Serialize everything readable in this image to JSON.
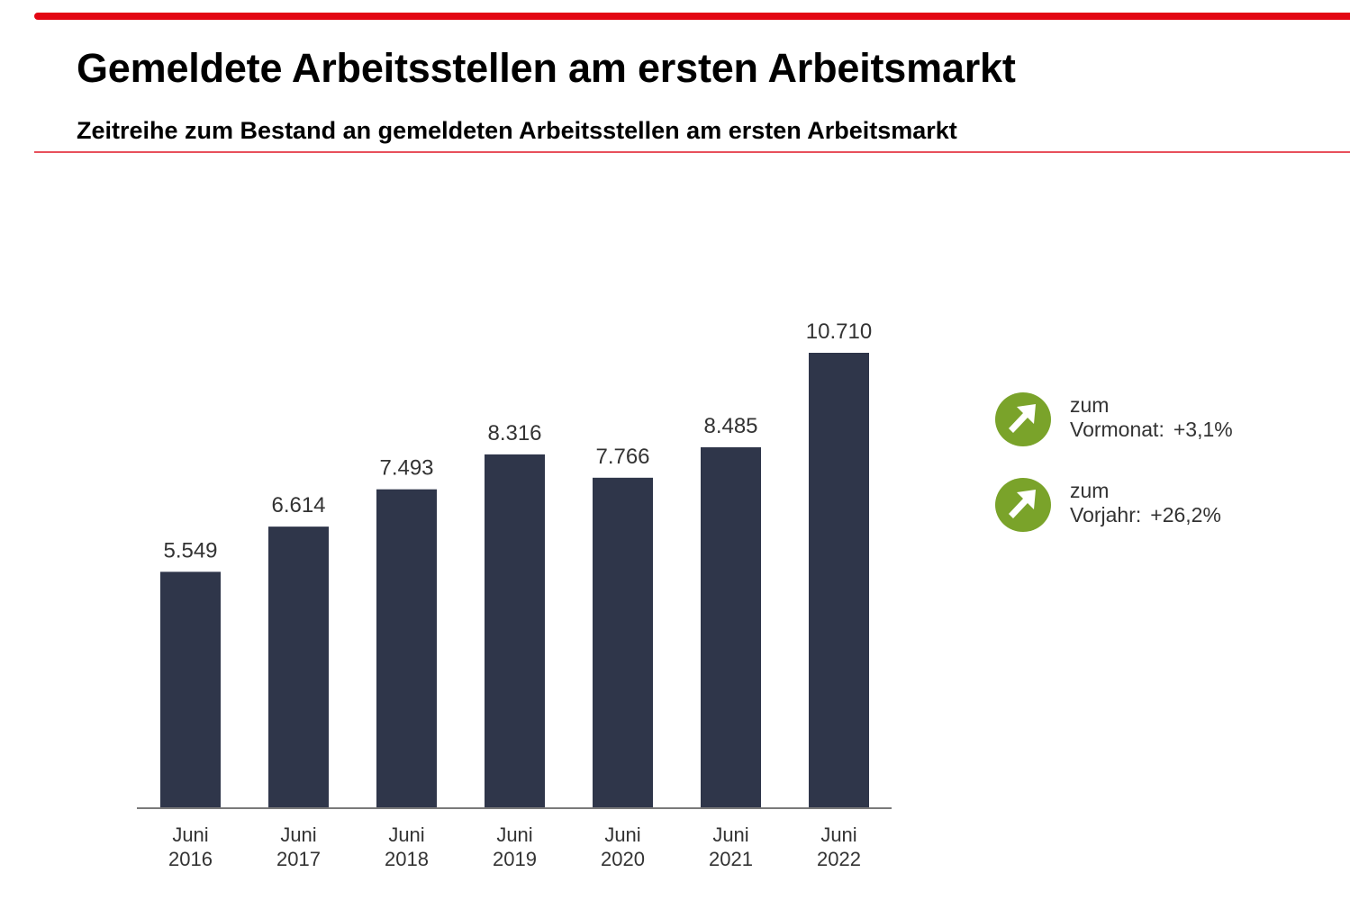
{
  "header": {
    "title": "Gemeldete Arbeitsstellen am ersten Arbeitsmarkt",
    "subtitle": "Zeitreihe zum Bestand an gemeldeten Arbeitsstellen am ersten Arbeitsmarkt"
  },
  "colors": {
    "accent_red": "#e30613",
    "bar": "#2f364a",
    "kpi_green": "#7aa32a"
  },
  "chart_data": {
    "type": "bar",
    "title": "Gemeldete Arbeitsstellen am ersten Arbeitsmarkt",
    "subtitle": "Zeitreihe zum Bestand an gemeldeten Arbeitsstellen am ersten Arbeitsmarkt",
    "xlabel": "",
    "ylabel": "",
    "categories": [
      {
        "line1": "Juni",
        "line2": "2016"
      },
      {
        "line1": "Juni",
        "line2": "2017"
      },
      {
        "line1": "Juni",
        "line2": "2018"
      },
      {
        "line1": "Juni",
        "line2": "2019"
      },
      {
        "line1": "Juni",
        "line2": "2020"
      },
      {
        "line1": "Juni",
        "line2": "2021"
      },
      {
        "line1": "Juni",
        "line2": "2022"
      }
    ],
    "values": [
      5549,
      6614,
      7493,
      8316,
      7766,
      8485,
      10710
    ],
    "value_labels": [
      "5.549",
      "6.614",
      "7.493",
      "8.316",
      "7.766",
      "8.485",
      "10.710"
    ],
    "ylim": [
      0,
      10710
    ],
    "grid": false,
    "legend": "none"
  },
  "kpis": [
    {
      "icon": "arrow-up-right-icon",
      "label_line1": "zum",
      "label_line2": "Vormonat:",
      "value": "+3,1%"
    },
    {
      "icon": "arrow-up-right-icon",
      "label_line1": "zum",
      "label_line2": "Vorjahr:",
      "value": "+26,2%"
    }
  ]
}
